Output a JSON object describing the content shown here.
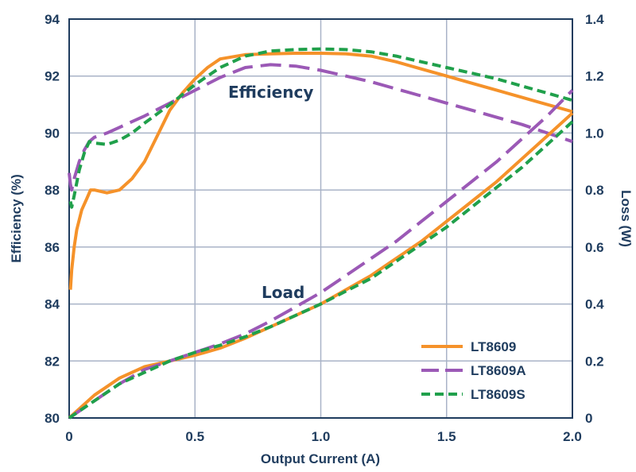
{
  "chart_data": {
    "type": "line",
    "title": "",
    "xlabel": "Output Current (A)",
    "ylabel_left": "Efficiency (%)",
    "ylabel_right": "Loss (W)",
    "xlim": [
      0,
      2.0
    ],
    "ylim_left": [
      80,
      94
    ],
    "ylim_right": [
      0,
      1.4
    ],
    "x_ticks": [
      "0",
      "0.5",
      "1.0",
      "1.5",
      "2.0"
    ],
    "y_ticks_left": [
      "80",
      "82",
      "84",
      "86",
      "88",
      "90",
      "92",
      "94"
    ],
    "y_ticks_right": [
      "0",
      "0.2",
      "0.4",
      "0.6",
      "0.8",
      "1.0",
      "1.2",
      "1.4"
    ],
    "grid": true,
    "legend_position": "bottom-right",
    "annotations": [
      {
        "text": "Efficiency",
        "x": 1.0,
        "y": 91.5,
        "axis": "left"
      },
      {
        "text": "Load",
        "x": 0.8,
        "y": 84.5,
        "axis": "left"
      }
    ],
    "series": [
      {
        "name": "LT8609",
        "color": "#f5922a",
        "dash": "solid",
        "group": "efficiency",
        "axis": "left",
        "x": [
          0.005,
          0.01,
          0.02,
          0.03,
          0.05,
          0.07,
          0.085,
          0.1,
          0.15,
          0.2,
          0.25,
          0.3,
          0.35,
          0.4,
          0.45,
          0.5,
          0.55,
          0.6,
          0.7,
          0.8,
          0.9,
          1.0,
          1.1,
          1.2,
          1.3,
          1.4,
          1.5,
          1.6,
          1.7,
          1.8,
          1.9,
          2.0
        ],
        "y": [
          84.5,
          85.2,
          86.0,
          86.6,
          87.3,
          87.7,
          88.0,
          88.0,
          87.9,
          88.0,
          88.4,
          89.0,
          89.9,
          90.8,
          91.4,
          91.9,
          92.3,
          92.6,
          92.75,
          92.78,
          92.8,
          92.8,
          92.78,
          92.7,
          92.5,
          92.25,
          92.0,
          91.75,
          91.5,
          91.25,
          91.0,
          90.75
        ]
      },
      {
        "name": "LT8609A",
        "color": "#9b59b6",
        "dash": "long-dash",
        "group": "efficiency",
        "axis": "left",
        "x": [
          0.0,
          0.005,
          0.01,
          0.02,
          0.04,
          0.06,
          0.08,
          0.1,
          0.15,
          0.2,
          0.3,
          0.4,
          0.5,
          0.6,
          0.7,
          0.8,
          0.9,
          1.0,
          1.1,
          1.2,
          1.3,
          1.4,
          1.5,
          1.6,
          1.7,
          1.8,
          1.9,
          2.0
        ],
        "y": [
          88.6,
          88.2,
          88.0,
          88.4,
          89.0,
          89.4,
          89.7,
          89.85,
          90.0,
          90.2,
          90.6,
          91.05,
          91.5,
          91.95,
          92.3,
          92.4,
          92.35,
          92.2,
          92.0,
          91.8,
          91.55,
          91.3,
          91.05,
          90.8,
          90.55,
          90.3,
          90.0,
          89.7
        ]
      },
      {
        "name": "LT8609S",
        "color": "#20a04b",
        "dash": "short-dash",
        "group": "efficiency",
        "axis": "left",
        "x": [
          0.005,
          0.01,
          0.02,
          0.04,
          0.06,
          0.08,
          0.1,
          0.15,
          0.2,
          0.25,
          0.3,
          0.4,
          0.5,
          0.6,
          0.7,
          0.8,
          0.9,
          1.0,
          1.1,
          1.2,
          1.3,
          1.4,
          1.5,
          1.6,
          1.7,
          1.8,
          1.9,
          2.0
        ],
        "y": [
          87.6,
          87.4,
          87.8,
          88.7,
          89.3,
          89.7,
          89.65,
          89.6,
          89.75,
          90.0,
          90.35,
          91.0,
          91.7,
          92.3,
          92.7,
          92.88,
          92.93,
          92.95,
          92.93,
          92.85,
          92.7,
          92.5,
          92.3,
          92.1,
          91.9,
          91.65,
          91.4,
          91.15
        ]
      },
      {
        "name": "LT8609",
        "color": "#f5922a",
        "dash": "solid",
        "group": "loss",
        "axis": "right",
        "x": [
          0.0,
          0.05,
          0.1,
          0.2,
          0.3,
          0.4,
          0.5,
          0.6,
          0.7,
          0.8,
          0.9,
          1.0,
          1.1,
          1.2,
          1.3,
          1.4,
          1.5,
          1.6,
          1.7,
          1.8,
          1.9,
          2.0
        ],
        "y": [
          0.0,
          0.04,
          0.08,
          0.14,
          0.18,
          0.2,
          0.22,
          0.245,
          0.28,
          0.32,
          0.36,
          0.4,
          0.45,
          0.5,
          0.56,
          0.62,
          0.69,
          0.76,
          0.83,
          0.91,
          0.99,
          1.07
        ]
      },
      {
        "name": "LT8609A",
        "color": "#9b59b6",
        "dash": "long-dash",
        "group": "loss",
        "axis": "right",
        "x": [
          0.0,
          0.05,
          0.1,
          0.2,
          0.3,
          0.4,
          0.5,
          0.6,
          0.7,
          0.8,
          0.9,
          1.0,
          1.1,
          1.2,
          1.3,
          1.4,
          1.5,
          1.6,
          1.7,
          1.8,
          1.9,
          2.0
        ],
        "y": [
          0.0,
          0.03,
          0.06,
          0.12,
          0.17,
          0.2,
          0.23,
          0.26,
          0.295,
          0.34,
          0.39,
          0.44,
          0.5,
          0.56,
          0.62,
          0.69,
          0.76,
          0.83,
          0.9,
          0.98,
          1.06,
          1.15
        ]
      },
      {
        "name": "LT8609S",
        "color": "#20a04b",
        "dash": "short-dash",
        "group": "loss",
        "axis": "right",
        "x": [
          0.0,
          0.05,
          0.1,
          0.2,
          0.3,
          0.4,
          0.5,
          0.6,
          0.7,
          0.8,
          0.9,
          1.0,
          1.1,
          1.2,
          1.3,
          1.4,
          1.5,
          1.6,
          1.7,
          1.8,
          1.9,
          2.0
        ],
        "y": [
          0.0,
          0.03,
          0.06,
          0.12,
          0.16,
          0.2,
          0.23,
          0.255,
          0.285,
          0.32,
          0.36,
          0.4,
          0.445,
          0.49,
          0.55,
          0.61,
          0.67,
          0.74,
          0.81,
          0.88,
          0.96,
          1.04
        ]
      }
    ],
    "legend": [
      {
        "name": "LT8609",
        "color": "#f5922a",
        "dash": "solid"
      },
      {
        "name": "LT8609A",
        "color": "#9b59b6",
        "dash": "long-dash"
      },
      {
        "name": "LT8609S",
        "color": "#20a04b",
        "dash": "short-dash"
      }
    ]
  }
}
